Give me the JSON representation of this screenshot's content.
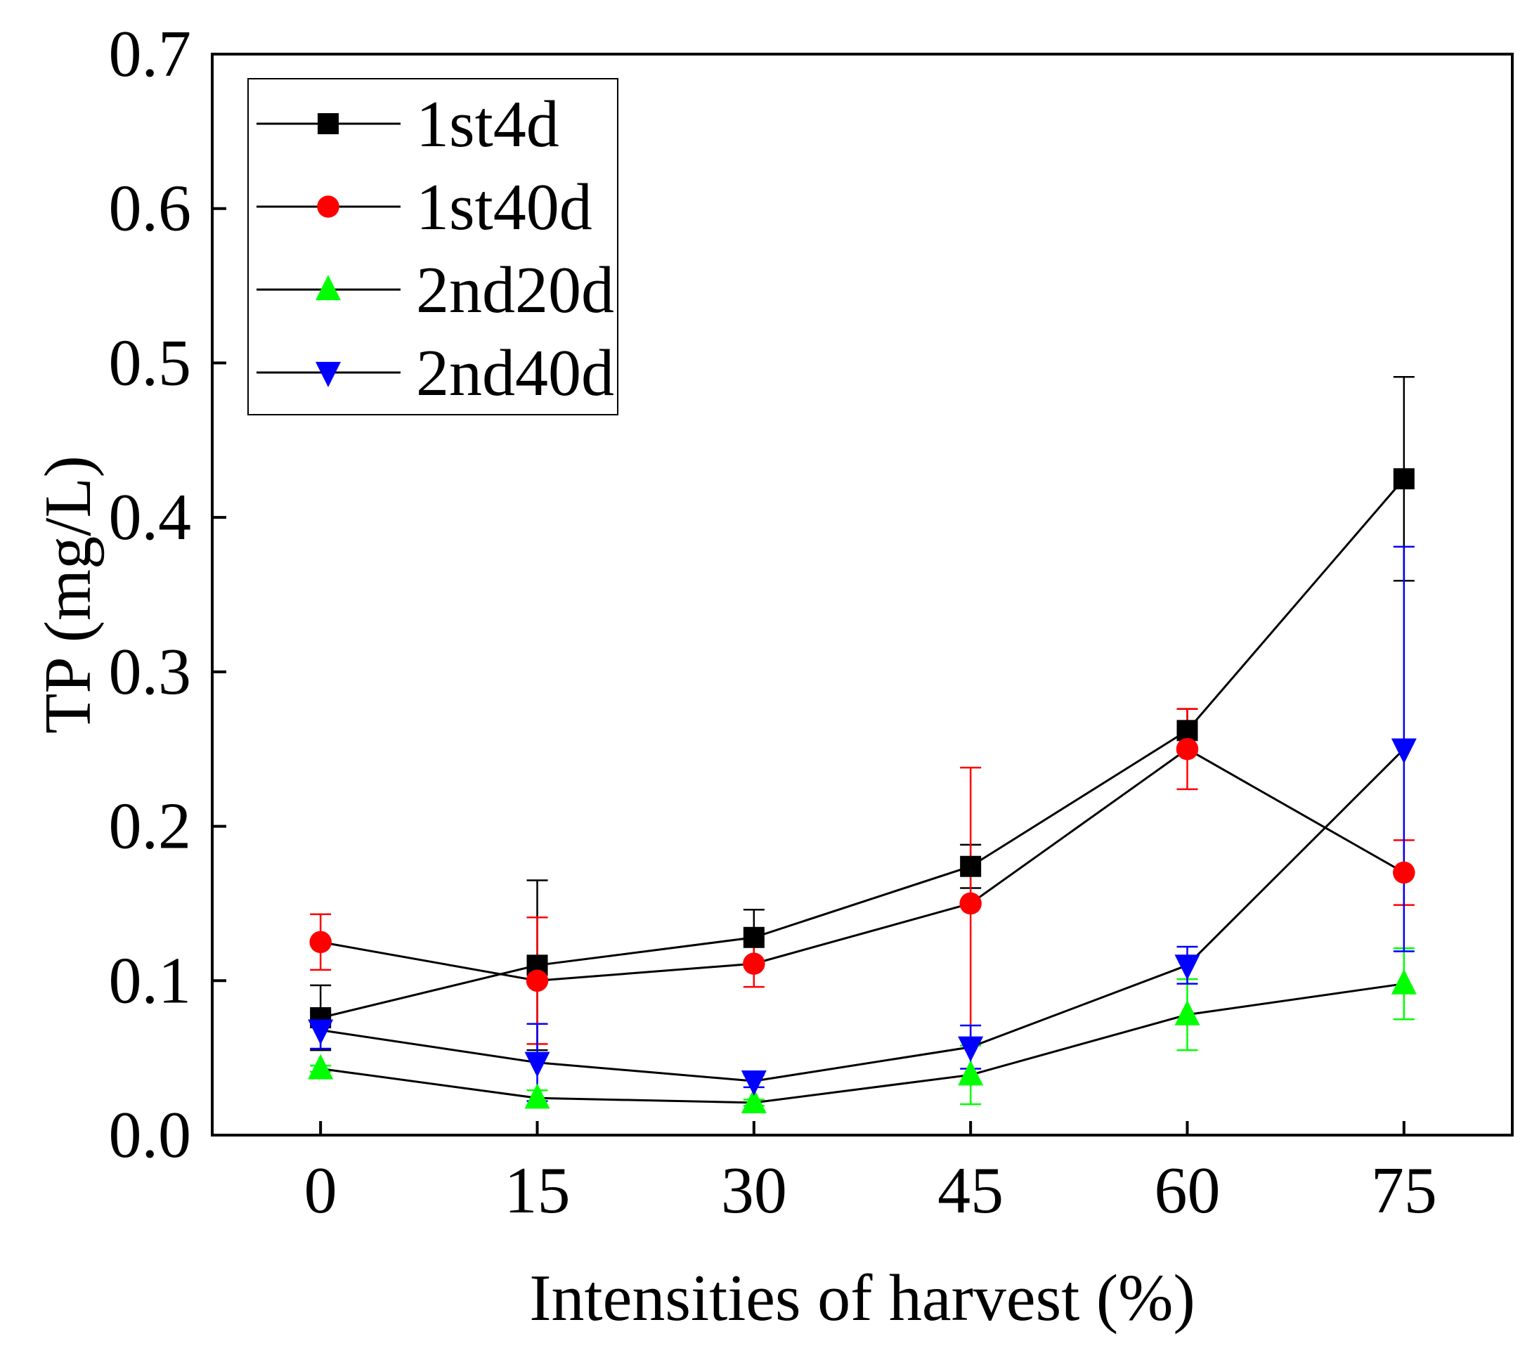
{
  "chart_data": {
    "type": "line",
    "xlabel": "Intensities of harvest (%)",
    "ylabel": "TP (mg/L)",
    "x": [
      0,
      15,
      30,
      45,
      60,
      75
    ],
    "x_tick_labels": [
      "0",
      "15",
      "30",
      "45",
      "60",
      "75"
    ],
    "xlim": [
      -7.5,
      82.5
    ],
    "ylim": [
      0,
      0.7
    ],
    "y_ticks": [
      0.0,
      0.1,
      0.2,
      0.3,
      0.4,
      0.5,
      0.6,
      0.7
    ],
    "y_tick_labels": [
      "0.0",
      "0.1",
      "0.2",
      "0.3",
      "0.4",
      "0.5",
      "0.6",
      "0.7"
    ],
    "grid": false,
    "legend_position": "top-left",
    "series": [
      {
        "name": "1st4d",
        "marker": "square",
        "color": "#000000",
        "values": [
          0.076,
          0.11,
          0.128,
          0.174,
          0.262,
          0.425
        ],
        "error": [
          0.021,
          0.055,
          0.018,
          0.014,
          0.014,
          0.066
        ]
      },
      {
        "name": "1st40d",
        "marker": "circle",
        "color": "#ff0000",
        "values": [
          0.125,
          0.1,
          0.111,
          0.15,
          0.25,
          0.17
        ],
        "error": [
          0.018,
          0.041,
          0.015,
          0.088,
          0.026,
          0.021
        ]
      },
      {
        "name": "2nd20d",
        "marker": "triangle-up",
        "color": "#00ff00",
        "values": [
          0.043,
          0.024,
          0.021,
          0.039,
          0.078,
          0.098
        ],
        "error": [
          0.002,
          0.005,
          0.002,
          0.019,
          0.023,
          0.023
        ]
      },
      {
        "name": "2nd40d",
        "marker": "triangle-down",
        "color": "#0000ff",
        "values": [
          0.068,
          0.047,
          0.035,
          0.057,
          0.11,
          0.25
        ],
        "error": [
          0.012,
          0.025,
          0.004,
          0.014,
          0.012,
          0.131
        ]
      }
    ]
  }
}
